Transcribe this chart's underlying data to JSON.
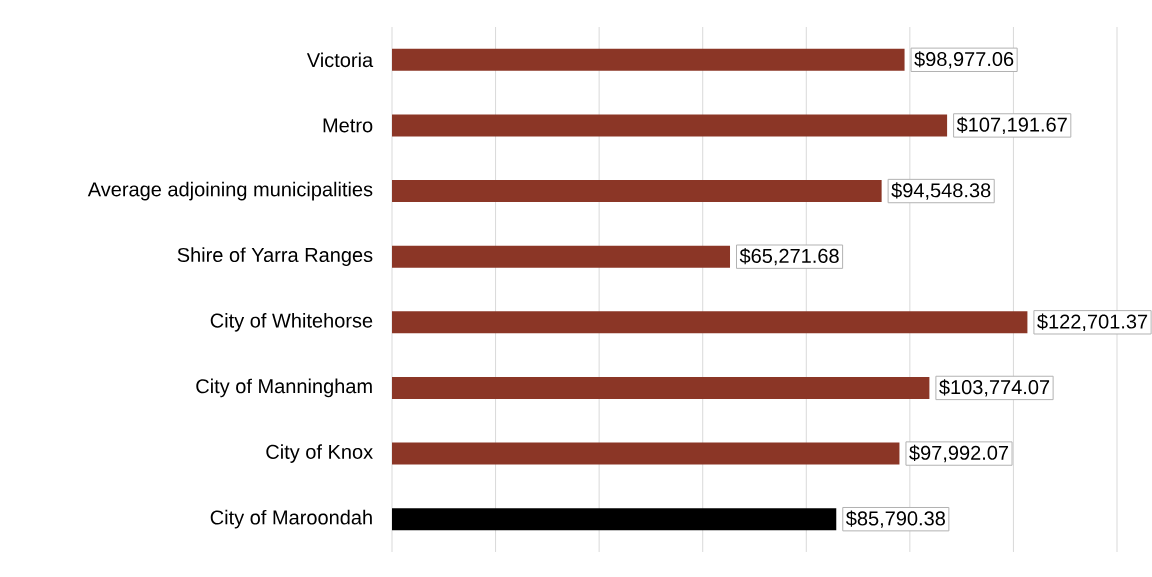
{
  "chart_data": {
    "type": "bar",
    "orientation": "horizontal",
    "categories": [
      "Victoria",
      "Metro",
      "Average adjoining municipalities",
      "Shire of Yarra Ranges",
      "City of Whitehorse",
      "City of Manningham",
      "City of Knox",
      "City of Maroondah"
    ],
    "values": [
      98977.06,
      107191.67,
      94548.38,
      65271.68,
      122701.37,
      103774.07,
      97992.07,
      85790.38
    ],
    "colors": [
      "#8b3626",
      "#8b3626",
      "#8b3626",
      "#8b3626",
      "#8b3626",
      "#8b3626",
      "#8b3626",
      "#000000"
    ],
    "value_labels": [
      "$98,977.06",
      "$107,191.67",
      "$94,548.38",
      "$65,271.68",
      "$122,701.37",
      "$103,774.07",
      "$97,992.07",
      "$85,790.38"
    ],
    "xlim": [
      0,
      140000
    ],
    "xticks": [
      {
        "value": 0,
        "label": null
      },
      {
        "value": 20000,
        "label": null
      },
      {
        "value": 40000,
        "label": null
      },
      {
        "value": 60000,
        "label": null
      },
      {
        "value": 80000,
        "label": null
      },
      {
        "value": 100000,
        "label": null
      },
      {
        "value": 120000,
        "label": null
      },
      {
        "value": 140000,
        "label": null
      }
    ],
    "grid": "x",
    "tick_labels": "y"
  }
}
